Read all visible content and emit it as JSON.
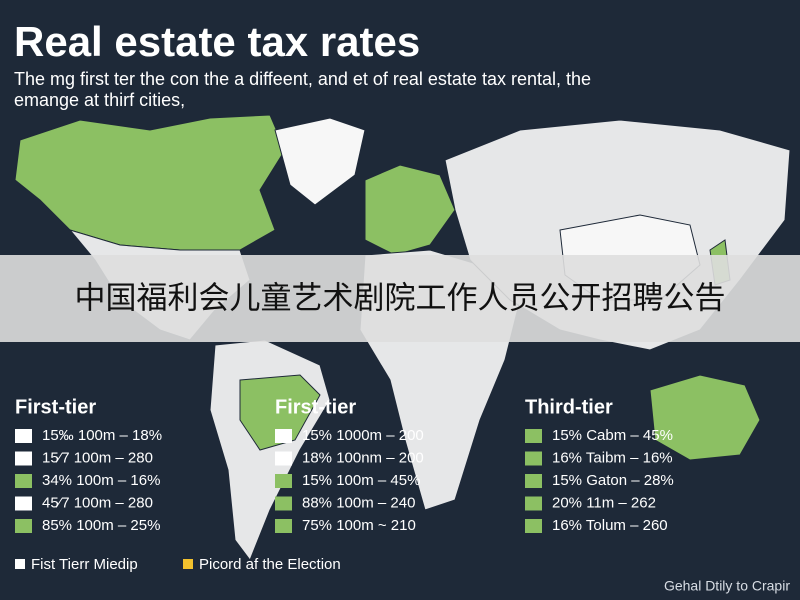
{
  "header": {
    "title": "Real estate tax rates",
    "subtitle": [
      "The mg first ter the con the a diffeent, and et of real estate tax rental, the",
      "emange at thirf cities,"
    ]
  },
  "banner": "中国福利会儿童艺术剧院工作人员公开招聘公告",
  "columns": [
    {
      "heading": "First-tier",
      "rows": [
        {
          "text": "15‰ 100m – 18%",
          "swatch": "#ffffff"
        },
        {
          "text": "15⁄7 100m – 280",
          "swatch": "#ffffff"
        },
        {
          "text": "34% 100m – 16%",
          "swatch": "#8cc063"
        },
        {
          "text": "45⁄7 100m – 280",
          "swatch": "#ffffff"
        },
        {
          "text": "85% 100m – 25%",
          "swatch": "#8cc063"
        }
      ]
    },
    {
      "heading": "First-tier",
      "rows": [
        {
          "text": "15% 1000m – 200",
          "swatch": "#ffffff"
        },
        {
          "text": "18% 100nm – 200",
          "swatch": "#ffffff"
        },
        {
          "text": "15% 100m – 45%",
          "swatch": "#8cc063"
        },
        {
          "text": "88% 100m – 240",
          "swatch": "#8cc063"
        },
        {
          "text": "75% 100m ~ 210",
          "swatch": "#8cc063"
        }
      ]
    },
    {
      "heading": "Third-tier",
      "rows": [
        {
          "text": "15% Cabm – 45%",
          "swatch": "#8cc063"
        },
        {
          "text": "16% Taibm – 16%",
          "swatch": "#8cc063"
        },
        {
          "text": "15% Gaton – 28%",
          "swatch": "#8cc063"
        },
        {
          "text": "20% 11m – 262",
          "swatch": "#8cc063"
        },
        {
          "text": "16% Tolum – 260",
          "swatch": "#8cc063"
        }
      ]
    }
  ],
  "legend": [
    {
      "label": "Fist Tierr Miedip",
      "swatch": "#ffffff"
    },
    {
      "label": "Picord af the Election",
      "swatch": "#f2c12e"
    }
  ],
  "footer": "Gehal Dtily to Crapir"
}
